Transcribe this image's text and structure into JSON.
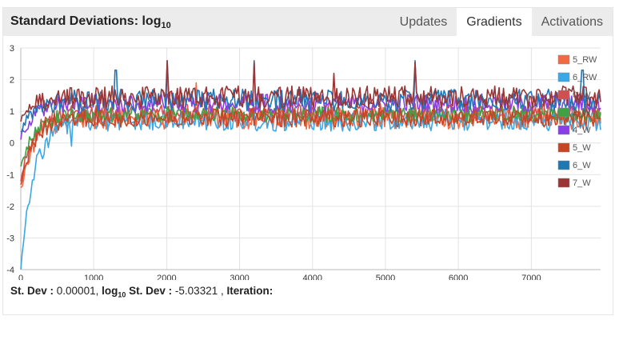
{
  "header": {
    "title_main": "Standard Deviations: log",
    "title_sub": "10"
  },
  "tabs": [
    {
      "label": "Updates",
      "active": false
    },
    {
      "label": "Gradients",
      "active": true
    },
    {
      "label": "Activations",
      "active": false
    }
  ],
  "status": {
    "stdev_label": "St. Dev :",
    "stdev_value": "0.00001,",
    "log_label": "log",
    "log_sub": "10",
    "log_label_rest": "St. Dev :",
    "log_value": "-5.03321 ,",
    "iteration_label": "Iteration:"
  },
  "chart_data": {
    "type": "line",
    "xlim": [
      0,
      7950
    ],
    "ylim": [
      -4,
      3
    ],
    "x_ticks": [
      0,
      1000,
      2000,
      3000,
      4000,
      5000,
      6000,
      7000
    ],
    "y_ticks": [
      3,
      2,
      1,
      0,
      -1,
      -2,
      -3,
      -4
    ],
    "grid": true,
    "legend_position": "top-right",
    "series": [
      {
        "name": "5_RW",
        "color": "#f26a41",
        "start": -1.5,
        "base": 0.78,
        "amp": 0.35,
        "spikes": [
          [
            2400,
            1.9
          ]
        ]
      },
      {
        "name": "6_RW",
        "color": "#3aa8e6",
        "start": -3.9,
        "base": 0.72,
        "amp": 0.35,
        "spikes": [
          [
            300,
            -0.5
          ],
          [
            690,
            -0.1
          ]
        ]
      },
      {
        "name": "0_W",
        "color": "#d05050",
        "start": -1.2,
        "base": 0.95,
        "amp": 0.3,
        "spikes": []
      },
      {
        "name": "2_W",
        "color": "#3fa142",
        "start": -0.8,
        "base": 0.9,
        "amp": 0.25,
        "spikes": [
          [
            450,
            0.8
          ]
        ]
      },
      {
        "name": "4_W",
        "color": "#8a3ee8",
        "start": 0.2,
        "base": 1.25,
        "amp": 0.3,
        "spikes": []
      },
      {
        "name": "5_W",
        "color": "#c84424",
        "start": -1.3,
        "base": 0.8,
        "amp": 0.3,
        "spikes": []
      },
      {
        "name": "6_W",
        "color": "#1f77b4",
        "start": 0.3,
        "base": 1.35,
        "amp": 0.35,
        "spikes": [
          [
            2000,
            2.6
          ],
          [
            3200,
            2.6
          ],
          [
            5400,
            2.6
          ],
          [
            1300,
            2.3
          ],
          [
            7700,
            2.3
          ]
        ]
      },
      {
        "name": "7_W",
        "color": "#9b3535",
        "start": 0.8,
        "base": 1.45,
        "amp": 0.35,
        "spikes": [
          [
            2000,
            2.6
          ],
          [
            3200,
            2.55
          ],
          [
            5400,
            2.55
          ],
          [
            4300,
            2.2
          ]
        ]
      }
    ]
  }
}
